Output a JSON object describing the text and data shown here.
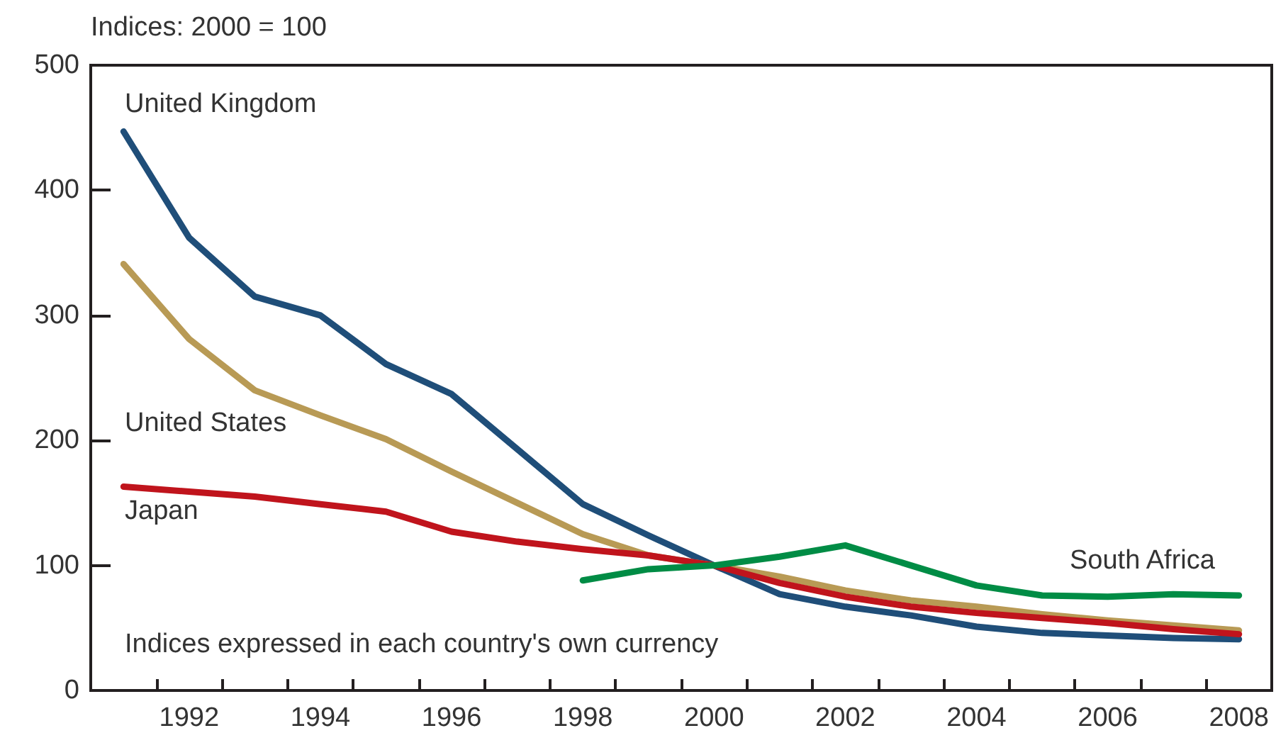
{
  "chart_data": {
    "type": "line",
    "ylabel": "Indices: 2000 = 100",
    "categories": [
      null,
      "1992",
      null,
      "1994",
      null,
      "1996",
      null,
      "1998",
      null,
      "2000",
      null,
      "2002",
      null,
      "2004",
      null,
      "2006",
      null,
      "2008"
    ],
    "series": [
      {
        "name": "United Kingdom",
        "color": "#1f4e79",
        "values": [
          447,
          362,
          315,
          300,
          261,
          237,
          193,
          149,
          124,
          100,
          77,
          67,
          60,
          51,
          46,
          44,
          42,
          41
        ]
      },
      {
        "name": "United States",
        "color": "#b89a55",
        "values": [
          341,
          281,
          240,
          220,
          201,
          175,
          150,
          125,
          108,
          100,
          91,
          80,
          72,
          67,
          61,
          56,
          52,
          48
        ]
      },
      {
        "name": "Japan",
        "color": "#c0141c",
        "values": [
          163,
          159,
          155,
          149,
          143,
          127,
          119,
          113,
          108,
          100,
          86,
          75,
          67,
          62,
          58,
          54,
          49,
          45
        ]
      },
      {
        "name": "South Africa",
        "color": "#008c45",
        "values": [
          null,
          null,
          null,
          null,
          null,
          null,
          null,
          88,
          97,
          100,
          107,
          116,
          100,
          84,
          76,
          75,
          77,
          76
        ]
      }
    ],
    "ylim": [
      0,
      500
    ],
    "yticks": [
      0,
      100,
      200,
      300,
      400,
      500
    ],
    "grid": false,
    "legend": false,
    "marker": "none",
    "line_style": "solid",
    "annotations": [
      "Indices expressed in each country's own currency"
    ]
  }
}
